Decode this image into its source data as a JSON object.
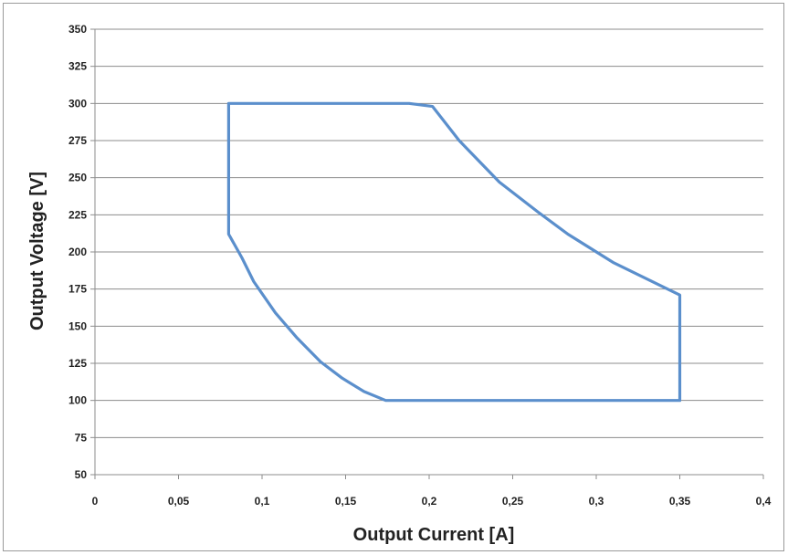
{
  "chart_data": {
    "type": "line",
    "title": "",
    "xlabel": "Output Current [A]",
    "ylabel": "Output Voltage [V]",
    "xlim": [
      0,
      0.4
    ],
    "ylim": [
      50,
      350
    ],
    "x_ticks": [
      {
        "value": 0,
        "label": "0"
      },
      {
        "value": 0.05,
        "label": "0,05"
      },
      {
        "value": 0.1,
        "label": "0,1"
      },
      {
        "value": 0.15,
        "label": "0,15"
      },
      {
        "value": 0.2,
        "label": "0,2"
      },
      {
        "value": 0.25,
        "label": "0,25"
      },
      {
        "value": 0.3,
        "label": "0,3"
      },
      {
        "value": 0.35,
        "label": "0,35"
      },
      {
        "value": 0.4,
        "label": "0,4"
      }
    ],
    "y_ticks": [
      {
        "value": 50,
        "label": "50"
      },
      {
        "value": 75,
        "label": "75"
      },
      {
        "value": 100,
        "label": "100"
      },
      {
        "value": 125,
        "label": "125"
      },
      {
        "value": 150,
        "label": "150"
      },
      {
        "value": 175,
        "label": "175"
      },
      {
        "value": 200,
        "label": "200"
      },
      {
        "value": 225,
        "label": "225"
      },
      {
        "value": 250,
        "label": "250"
      },
      {
        "value": 275,
        "label": "275"
      },
      {
        "value": 300,
        "label": "300"
      },
      {
        "value": 325,
        "label": "325"
      },
      {
        "value": 350,
        "label": "350"
      }
    ],
    "grid": "horizontal",
    "legend": "none",
    "series": [
      {
        "color": "#5b8fcc",
        "points": [
          [
            0.08,
            300
          ],
          [
            0.188,
            300
          ],
          [
            0.202,
            298
          ],
          [
            0.218,
            275
          ],
          [
            0.242,
            247
          ],
          [
            0.265,
            227
          ],
          [
            0.283,
            212
          ],
          [
            0.31,
            193
          ],
          [
            0.35,
            171
          ],
          [
            0.35,
            100
          ],
          [
            0.174,
            100
          ],
          [
            0.161,
            106
          ],
          [
            0.148,
            115
          ],
          [
            0.135,
            126
          ],
          [
            0.121,
            142
          ],
          [
            0.108,
            159
          ],
          [
            0.095,
            180
          ],
          [
            0.088,
            196
          ],
          [
            0.08,
            212
          ],
          [
            0.08,
            300
          ]
        ]
      }
    ]
  }
}
